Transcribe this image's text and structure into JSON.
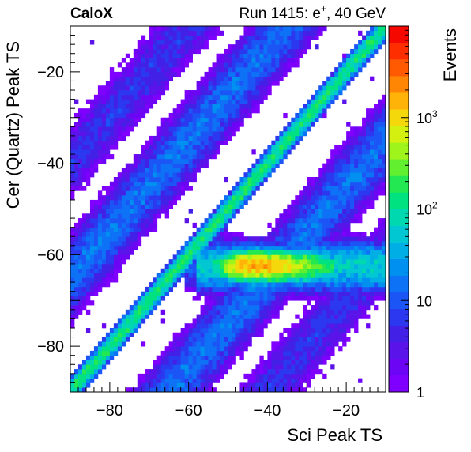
{
  "chart_data": {
    "type": "heatmap",
    "title_left": "CaloX",
    "title_right_prefix": "Run 1415: e",
    "title_right_sup": "+",
    "title_right_suffix": ", 40 GeV",
    "xlabel": "Sci Peak TS",
    "ylabel": "Cer (Quartz) Peak TS",
    "zlabel": "Events",
    "xlim": [
      -90,
      -10
    ],
    "ylim": [
      -90,
      -10
    ],
    "zscale": "log",
    "zlim": [
      1,
      10000
    ],
    "grid": false,
    "xticks": [
      {
        "value": -80,
        "label": "−80"
      },
      {
        "value": -60,
        "label": "−60"
      },
      {
        "value": -40,
        "label": "−40"
      },
      {
        "value": -20,
        "label": "−20"
      }
    ],
    "yticks": [
      {
        "value": -80,
        "label": "−80"
      },
      {
        "value": -60,
        "label": "−60"
      },
      {
        "value": -40,
        "label": "−40"
      },
      {
        "value": -20,
        "label": "−20"
      }
    ],
    "zticks": [
      {
        "value": 1,
        "base": "1",
        "exp": ""
      },
      {
        "value": 10,
        "base": "10",
        "exp": ""
      },
      {
        "value": 100,
        "base": "10",
        "exp": "2"
      },
      {
        "value": 1000,
        "base": "10",
        "exp": "3"
      }
    ],
    "features": [
      {
        "name": "main diagonal band",
        "relation": "cer = sci",
        "peak_events": 150
      },
      {
        "name": "upper diagonal band",
        "relation": "cer = sci + 25",
        "peak_events": 15
      },
      {
        "name": "lower diagonal band",
        "relation": "cer = sci - 25",
        "peak_events": 15
      },
      {
        "name": "upper-left diagonal band",
        "relation": "cer = sci + 50",
        "peak_events": 6
      },
      {
        "name": "lower-right diagonal band",
        "relation": "cer = sci - 50",
        "peak_events": 6
      },
      {
        "name": "horizontal cluster",
        "x_range": [
          -55,
          -10
        ],
        "y": -62.5,
        "peak_x": -44,
        "peak_events": 1500
      }
    ]
  },
  "colors": {
    "palette": [
      "#7f00ff",
      "#6d05f5",
      "#5a14ea",
      "#4220e6",
      "#2b38f0",
      "#1c55f6",
      "#0e72f7",
      "#0090f0",
      "#00aee6",
      "#00c7d2",
      "#00d8b0",
      "#00e17f",
      "#24e852",
      "#62ef2f",
      "#9ff41b",
      "#d4f010",
      "#f5d80c",
      "#ffb208",
      "#ff8604",
      "#ff5a02",
      "#ff2e00",
      "#f50800"
    ],
    "background": "#ffffff",
    "axis": "#000000"
  }
}
